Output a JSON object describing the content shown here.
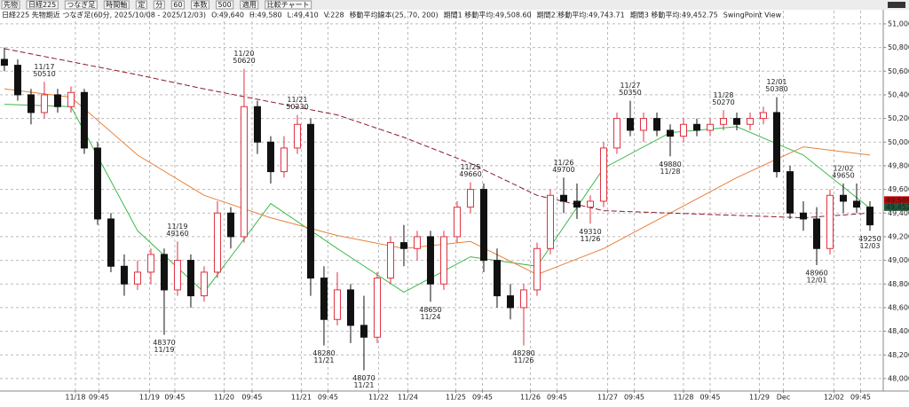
{
  "toolbar": [
    "先物",
    "日経225",
    "つなぎ足",
    "時間軸",
    "定",
    "分",
    "60",
    "本数",
    "500",
    "適用",
    "比較チャート"
  ],
  "chart_data": {
    "type": "candlestick",
    "title": "日経225 先物期近 つなぎ足(60分, 2025/10/08 - 2025/12/03)",
    "ohlcv": [
      "O:49,640",
      "H:49,580",
      "L:49,410",
      "V:228"
    ],
    "ma_label": "移動平均線本(25, 70, 200)",
    "view_label": "SwingPoint View",
    "up_color": "#e03040",
    "down_color": "#111111",
    "candles": [
      [
        50700,
        50800,
        50600,
        50650
      ],
      [
        50650,
        50700,
        50350,
        50400
      ],
      [
        50400,
        50450,
        50150,
        50250
      ],
      [
        50250,
        50510,
        50200,
        50400
      ],
      [
        50400,
        50450,
        50250,
        50300
      ],
      [
        50300,
        50470,
        50250,
        50420
      ],
      [
        50420,
        50450,
        49900,
        49950
      ],
      [
        49950,
        50000,
        49300,
        49350
      ],
      [
        49350,
        49400,
        48900,
        48950
      ],
      [
        48950,
        49050,
        48700,
        48800
      ],
      [
        48800,
        49000,
        48750,
        48900
      ],
      [
        48900,
        49100,
        48800,
        49050
      ],
      [
        49050,
        49100,
        48370,
        48750
      ],
      [
        48750,
        49160,
        48700,
        49000
      ],
      [
        49000,
        49050,
        48600,
        48700
      ],
      [
        48700,
        48950,
        48650,
        48900
      ],
      [
        48900,
        49500,
        48850,
        49400
      ],
      [
        49400,
        49450,
        49100,
        49200
      ],
      [
        49200,
        50620,
        49150,
        50300
      ],
      [
        50300,
        50350,
        49900,
        50000
      ],
      [
        50000,
        50050,
        49650,
        49750
      ],
      [
        49750,
        50050,
        49700,
        49950
      ],
      [
        49950,
        50230,
        49900,
        50150
      ],
      [
        50150,
        50200,
        48700,
        48850
      ],
      [
        48850,
        48950,
        48280,
        48500
      ],
      [
        48500,
        48900,
        48450,
        48750
      ],
      [
        48750,
        48800,
        48300,
        48450
      ],
      [
        48450,
        48700,
        48070,
        48350
      ],
      [
        48350,
        48900,
        48300,
        48850
      ],
      [
        48850,
        49200,
        48800,
        49150
      ],
      [
        49150,
        49300,
        48950,
        49100
      ],
      [
        49100,
        49250,
        49000,
        49200
      ],
      [
        49200,
        49250,
        48650,
        48800
      ],
      [
        48800,
        49250,
        48750,
        49200
      ],
      [
        49200,
        49500,
        49150,
        49450
      ],
      [
        49450,
        49660,
        49400,
        49600
      ],
      [
        49600,
        49650,
        48900,
        49000
      ],
      [
        49000,
        49100,
        48600,
        48700
      ],
      [
        48700,
        48800,
        48500,
        48600
      ],
      [
        48600,
        48800,
        48280,
        48750
      ],
      [
        48750,
        49150,
        48700,
        49100
      ],
      [
        49100,
        49600,
        49050,
        49550
      ],
      [
        49550,
        49700,
        49400,
        49500
      ],
      [
        49500,
        49650,
        49350,
        49450
      ],
      [
        49450,
        49550,
        49310,
        49500
      ],
      [
        49500,
        50000,
        49450,
        49950
      ],
      [
        49950,
        50250,
        49900,
        50200
      ],
      [
        50200,
        50350,
        50050,
        50100
      ],
      [
        50100,
        50250,
        50000,
        50200
      ],
      [
        50200,
        50250,
        50050,
        50100
      ],
      [
        50100,
        50150,
        49880,
        50050
      ],
      [
        50050,
        50200,
        50000,
        50150
      ],
      [
        50150,
        50200,
        50050,
        50100
      ],
      [
        50100,
        50200,
        50050,
        50150
      ],
      [
        50150,
        50270,
        50100,
        50200
      ],
      [
        50200,
        50250,
        50100,
        50150
      ],
      [
        50150,
        50250,
        50100,
        50200
      ],
      [
        50200,
        50300,
        50150,
        50250
      ],
      [
        50250,
        50380,
        49700,
        49750
      ],
      [
        49750,
        49800,
        49350,
        49400
      ],
      [
        49400,
        49500,
        49250,
        49350
      ],
      [
        49350,
        49450,
        48960,
        49100
      ],
      [
        49100,
        49600,
        49050,
        49550
      ],
      [
        49550,
        49650,
        49400,
        49500
      ],
      [
        49500,
        49650,
        49400,
        49450
      ],
      [
        49450,
        49500,
        49250,
        49300
      ]
    ],
    "series": [
      {
        "name": "期間1 移動平均:49,508.60",
        "color": "#3cb84a",
        "dashed": false,
        "x": [
          0,
          5,
          10,
          15,
          20,
          25,
          30,
          35,
          40,
          45,
          50,
          55,
          60,
          65
        ],
        "values": [
          50320,
          50300,
          49250,
          48730,
          49480,
          49100,
          48730,
          49030,
          48950,
          49780,
          50080,
          50130,
          49890,
          49440
        ]
      },
      {
        "name": "期間2 移動平均:49,743.71",
        "color": "#e8803a",
        "dashed": false,
        "x": [
          0,
          5,
          10,
          15,
          20,
          25,
          30,
          35,
          40,
          45,
          50,
          55,
          60,
          65
        ],
        "values": [
          50450,
          50380,
          49890,
          49550,
          49360,
          49210,
          49100,
          49160,
          48880,
          49100,
          49400,
          49700,
          49960,
          49890
        ]
      },
      {
        "name": "期間3 移動平均:49,452.75",
        "color": "#8a1a2a",
        "dashed": true,
        "x": [
          0,
          5,
          10,
          15,
          20,
          25,
          30,
          35,
          40,
          45,
          50,
          55,
          60,
          65
        ],
        "values": [
          50790,
          50680,
          50570,
          50450,
          50340,
          50230,
          50040,
          49820,
          49550,
          49420,
          49400,
          49380,
          49360,
          49400
        ]
      }
    ],
    "xlim": [
      -0.33,
      66
    ],
    "xticks": [
      {
        "value": 5.33,
        "label": "11/18"
      },
      {
        "value": 7.1,
        "label": "09:45"
      },
      {
        "value": 10.9,
        "label": "11/19"
      },
      {
        "value": 12.8,
        "label": "09:45"
      },
      {
        "value": 16.5,
        "label": "11/20"
      },
      {
        "value": 18.6,
        "label": "09:45"
      },
      {
        "value": 22.3,
        "label": "11/21"
      },
      {
        "value": 24.3,
        "label": "09:45"
      },
      {
        "value": 28.1,
        "label": "11/22"
      },
      {
        "value": 30.3,
        "label": "11/24"
      },
      {
        "value": 33.9,
        "label": "11/25"
      },
      {
        "value": 35.9,
        "label": "09:45"
      },
      {
        "value": 39.5,
        "label": "11/26"
      },
      {
        "value": 41.5,
        "label": "09:45"
      },
      {
        "value": 45.3,
        "label": "11/27"
      },
      {
        "value": 47.3,
        "label": "09:45"
      },
      {
        "value": 51,
        "label": "11/28"
      },
      {
        "value": 53,
        "label": "09:45"
      },
      {
        "value": 56.7,
        "label": "11/29"
      },
      {
        "value": 58.5,
        "label": "Dec"
      },
      {
        "value": 62.3,
        "label": "12/02"
      },
      {
        "value": 64.3,
        "label": "09:45"
      }
    ],
    "ylim": [
      47902,
      51112
    ],
    "yticks": [
      {
        "value": 48000,
        "label": "48,000"
      },
      {
        "value": 48200,
        "label": "48,200"
      },
      {
        "value": 48400,
        "label": "48,400"
      },
      {
        "value": 48600,
        "label": "48,600"
      },
      {
        "value": 48800,
        "label": "48,800"
      },
      {
        "value": 49000,
        "label": "49,000"
      },
      {
        "value": 49200,
        "label": "49,200"
      },
      {
        "value": 49400,
        "label": "49,400"
      },
      {
        "value": 49600,
        "label": "49,600"
      },
      {
        "value": 49800,
        "label": "49,800"
      },
      {
        "value": 50000,
        "label": "50,000"
      },
      {
        "value": 50200,
        "label": "50,200"
      },
      {
        "value": 50400,
        "label": "50,400"
      },
      {
        "value": 50600,
        "label": "50,600"
      },
      {
        "value": 50800,
        "label": "50,800"
      },
      {
        "value": 51000,
        "label": "51,000"
      }
    ],
    "grid": true,
    "price_tags": [
      {
        "value": 49508,
        "label": "49,508",
        "color": "#c00000"
      },
      {
        "value": 49452,
        "label": "49,452",
        "color": "#1f5a3a"
      }
    ],
    "annotations": [
      {
        "x": 3,
        "price": 50510,
        "date": "11/17",
        "position": "above"
      },
      {
        "x": 18,
        "price": 50620,
        "date": "11/20",
        "position": "above"
      },
      {
        "x": 22,
        "price": 50230,
        "date": "11/21",
        "position": "above"
      },
      {
        "x": 13,
        "price": 49160,
        "date": "11/19",
        "position": "above"
      },
      {
        "x": 12,
        "price": 48370,
        "date": "11/19",
        "position": "below"
      },
      {
        "x": 24,
        "price": 48280,
        "date": "11/21",
        "position": "below"
      },
      {
        "x": 27,
        "price": 48070,
        "date": "11/21",
        "position": "below"
      },
      {
        "x": 32,
        "price": 48650,
        "date": "11/24",
        "position": "below"
      },
      {
        "x": 35,
        "price": 49660,
        "date": "11/25",
        "position": "above"
      },
      {
        "x": 39,
        "price": 48280,
        "date": "11/26",
        "position": "below"
      },
      {
        "x": 42,
        "price": 49700,
        "date": "11/26",
        "position": "above"
      },
      {
        "x": 44,
        "price": 49310,
        "date": "11/26",
        "position": "below"
      },
      {
        "x": 47,
        "price": 50350,
        "date": "11/27",
        "position": "above"
      },
      {
        "x": 50,
        "price": 49880,
        "date": "11/28",
        "position": "below"
      },
      {
        "x": 54,
        "price": 50270,
        "date": "11/28",
        "position": "above"
      },
      {
        "x": 58,
        "price": 50380,
        "date": "12/01",
        "position": "above"
      },
      {
        "x": 61,
        "price": 48960,
        "date": "12/01",
        "position": "below"
      },
      {
        "x": 63,
        "price": 49650,
        "date": "12/02",
        "position": "above"
      },
      {
        "x": 65,
        "price": 49250,
        "date": "12/03",
        "position": "below"
      }
    ]
  }
}
